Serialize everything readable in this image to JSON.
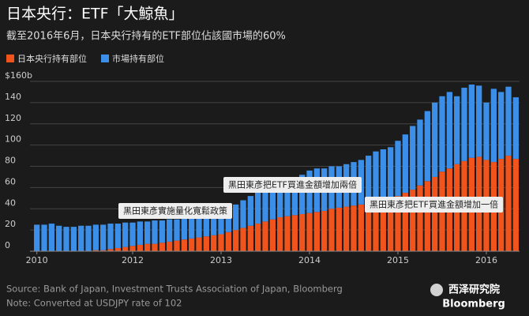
{
  "chart_data": {
    "type": "stacked-bar",
    "title": "日本央行：ETF「大鯨魚」",
    "subtitle": "截至2016年6月，日本央行持有的ETF部位佔該國市場的60%",
    "categories": [
      "2010",
      null,
      null,
      null,
      null,
      null,
      null,
      null,
      null,
      null,
      null,
      null,
      null,
      "2012",
      null,
      null,
      null,
      null,
      null,
      null,
      null,
      null,
      null,
      null,
      null,
      "2013",
      null,
      null,
      null,
      null,
      null,
      null,
      null,
      null,
      null,
      null,
      null,
      "2014",
      null,
      null,
      null,
      null,
      null,
      null,
      null,
      null,
      null,
      null,
      null,
      "2015",
      null,
      null,
      null,
      null,
      null,
      null,
      null,
      null,
      null,
      null,
      null,
      "2016",
      null,
      null,
      null,
      null
    ],
    "series": [
      {
        "name": "日本央行持有部位",
        "color": "#f0531c",
        "values": [
          0,
          0,
          0,
          0,
          0,
          0,
          0,
          0,
          1,
          1,
          2,
          3,
          4,
          5,
          6,
          7,
          7,
          8,
          9,
          10,
          11,
          12,
          13,
          14,
          15,
          16,
          18,
          20,
          22,
          24,
          26,
          28,
          30,
          32,
          33,
          34,
          35,
          36,
          37,
          38,
          40,
          41,
          42,
          43,
          44,
          46,
          47,
          48,
          50,
          52,
          55,
          58,
          62,
          66,
          70,
          75,
          78,
          82,
          85,
          88,
          89,
          86,
          84,
          87,
          90,
          87
        ]
      },
      {
        "name": "市場持有部位",
        "color": "#3b8fe8",
        "values": [
          25,
          25,
          26,
          24,
          23,
          23,
          24,
          24,
          24,
          24,
          24,
          23,
          23,
          22,
          22,
          21,
          22,
          21,
          21,
          20,
          20,
          20,
          20,
          20,
          20,
          21,
          22,
          24,
          26,
          28,
          30,
          32,
          32,
          32,
          33,
          35,
          37,
          40,
          41,
          40,
          40,
          39,
          40,
          41,
          42,
          44,
          47,
          48,
          48,
          52,
          55,
          60,
          62,
          66,
          70,
          71,
          72,
          64,
          69,
          69,
          67,
          54,
          69,
          63,
          65,
          58
        ]
      }
    ],
    "ylim": [
      0,
      160
    ],
    "yticks": [
      0,
      20,
      40,
      60,
      80,
      100,
      120,
      140,
      {
        "value": 160,
        "label": "$160b"
      }
    ],
    "grid": true,
    "annotations": [
      "黑田東彥實施量化寬鬆政策",
      "黑田東彥把ETF買進金額增加兩倍",
      "黑田東彥把ETF買進金額增加一倍"
    ],
    "source": "Source: Bank of Japan, Investment Trusts Association of Japan, Bloomberg",
    "note": "Note: Converted at USDJPY rate of 102",
    "watermark": "西泽研究院",
    "brand": "Bloomberg"
  }
}
